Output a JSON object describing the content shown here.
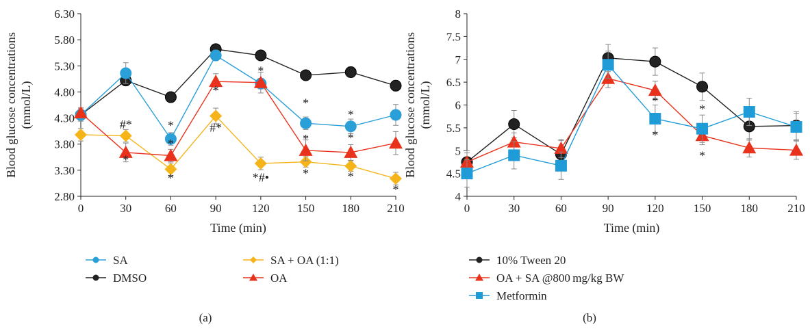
{
  "chart_data": [
    {
      "panel_label": "(a)",
      "type": "line",
      "xlabel": "Time (min)",
      "ylabel": "Blood glucose concentrations (mmol/L)",
      "ylabel_lines": [
        "Blood glucose concentrations",
        "(mmol/L)"
      ],
      "x": [
        0,
        30,
        60,
        90,
        120,
        150,
        180,
        210
      ],
      "xtick_labels": [
        "0",
        "30",
        "60",
        "90",
        "120",
        "150",
        "180",
        "210"
      ],
      "ytick_labels": [
        "2.80",
        "3.30",
        "3.80",
        "4.30",
        "4.80",
        "5.30",
        "5.80",
        "6.30"
      ],
      "ytick_values": [
        2.8,
        3.3,
        3.8,
        4.3,
        4.8,
        5.3,
        5.8,
        6.3
      ],
      "ylim": [
        2.8,
        6.3
      ],
      "grid": false,
      "series": [
        {
          "name": "DMSO",
          "marker": "circle",
          "color": "#222222",
          "values": [
            4.36,
            5.02,
            4.7,
            5.62,
            5.5,
            5.12,
            5.18,
            4.92
          ],
          "errors": [
            0.12,
            0.1,
            0.1,
            0.08,
            0.08,
            0.08,
            0.1,
            0.1
          ]
        },
        {
          "name": "SA",
          "marker": "circle",
          "color": "#2a9fd8",
          "values": [
            4.36,
            5.16,
            3.9,
            5.5,
            4.96,
            4.2,
            4.14,
            4.36
          ],
          "errors": [
            0.1,
            0.2,
            0.12,
            0.1,
            0.1,
            0.12,
            0.14,
            0.2
          ]
        },
        {
          "name": "SA + OA (1:1)",
          "marker": "diamond",
          "color": "#f5b419",
          "values": [
            3.98,
            3.96,
            3.32,
            4.34,
            3.43,
            3.46,
            3.38,
            3.14
          ],
          "errors": [
            0.12,
            0.12,
            0.12,
            0.15,
            0.12,
            0.1,
            0.1,
            0.12
          ]
        },
        {
          "name": "OA",
          "marker": "triangle",
          "color": "#e8321c",
          "values": [
            4.4,
            3.64,
            3.58,
            5.0,
            4.98,
            3.68,
            3.64,
            3.82
          ],
          "errors": [
            0.1,
            0.18,
            0.12,
            0.15,
            0.2,
            0.2,
            0.15,
            0.22
          ]
        }
      ],
      "annotations": [
        {
          "x": 30,
          "y": 4.1,
          "text": "#*"
        },
        {
          "x": 30,
          "y": 3.42,
          "text": "*"
        },
        {
          "x": 60,
          "y": 4.08,
          "text": "*"
        },
        {
          "x": 60,
          "y": 3.73,
          "text": "*"
        },
        {
          "x": 60,
          "y": 3.07,
          "text": "*"
        },
        {
          "x": 90,
          "y": 4.75,
          "text": "*"
        },
        {
          "x": 90,
          "y": 4.04,
          "text": "#*"
        },
        {
          "x": 120,
          "y": 5.13,
          "text": "*"
        },
        {
          "x": 120,
          "y": 3.08,
          "text": "*#•"
        },
        {
          "x": 150,
          "y": 4.51,
          "text": "*"
        },
        {
          "x": 150,
          "y": 3.82,
          "text": "*"
        },
        {
          "x": 150,
          "y": 3.16,
          "text": "*"
        },
        {
          "x": 180,
          "y": 4.29,
          "text": "*"
        },
        {
          "x": 180,
          "y": 3.84,
          "text": "*"
        },
        {
          "x": 180,
          "y": 3.1,
          "text": "*"
        },
        {
          "x": 210,
          "y": 2.85,
          "text": "*"
        }
      ],
      "legend": {
        "placement": "below",
        "items": [
          "SA",
          "SA + OA (1:1)",
          "DMSO",
          "OA"
        ]
      }
    },
    {
      "panel_label": "(b)",
      "type": "line",
      "xlabel": "Time (min)",
      "ylabel": "Blood glucose concentrations (mmol/L)",
      "ylabel_lines": [
        "Blood glucose concentrations",
        "(mmol/L)"
      ],
      "x": [
        0,
        30,
        60,
        90,
        120,
        150,
        180,
        210
      ],
      "xtick_labels": [
        "0",
        "30",
        "60",
        "90",
        "120",
        "150",
        "180",
        "210"
      ],
      "ytick_labels": [
        "4",
        "4.5",
        "5",
        "5.5",
        "6",
        "6.5",
        "7",
        "7.5",
        "8"
      ],
      "ytick_values": [
        4,
        4.5,
        5,
        5.5,
        6,
        6.5,
        7,
        7.5,
        8
      ],
      "ylim": [
        4,
        8
      ],
      "grid": false,
      "series": [
        {
          "name": "10% Tween 20",
          "marker": "circle",
          "color": "#222222",
          "values": [
            4.75,
            5.58,
            4.92,
            7.03,
            6.95,
            6.4,
            5.53,
            5.55
          ],
          "errors": [
            0.25,
            0.3,
            0.3,
            0.3,
            0.3,
            0.3,
            0.3,
            0.3
          ]
        },
        {
          "name": "OA + SA @800 mg/kg BW",
          "marker": "triangle",
          "color": "#e8321c",
          "values": [
            4.75,
            5.19,
            5.05,
            6.58,
            6.32,
            5.33,
            5.06,
            5.01
          ],
          "errors": [
            0.2,
            0.2,
            0.2,
            0.2,
            0.2,
            0.2,
            0.2,
            0.2
          ]
        },
        {
          "name": "Metformin",
          "marker": "square",
          "color": "#1f9bd7",
          "values": [
            4.5,
            4.9,
            4.67,
            6.88,
            5.7,
            5.48,
            5.85,
            5.52
          ],
          "errors": [
            0.3,
            0.3,
            0.3,
            0.3,
            0.3,
            0.3,
            0.3,
            0.3
          ]
        }
      ],
      "annotations": [
        {
          "x": 120,
          "y": 6.0,
          "text": "*"
        },
        {
          "x": 120,
          "y": 5.25,
          "text": "*"
        },
        {
          "x": 150,
          "y": 5.82,
          "text": "*"
        },
        {
          "x": 150,
          "y": 4.8,
          "text": "*"
        }
      ],
      "legend": {
        "placement": "below",
        "items": [
          "10% Tween 20",
          "OA + SA @800 mg/kg BW",
          "Metformin"
        ]
      }
    }
  ]
}
